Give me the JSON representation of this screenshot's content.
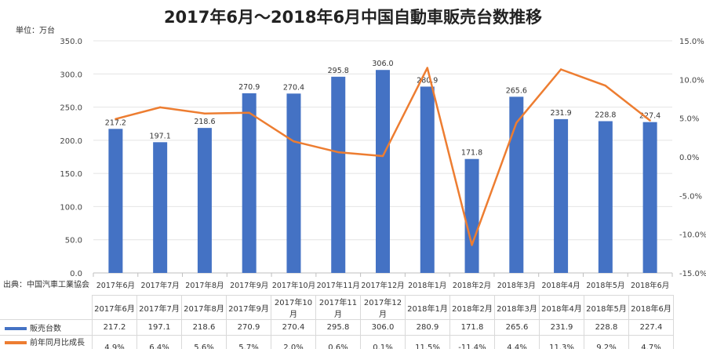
{
  "chart_data": {
    "type": "bar+line",
    "title": "2017年6月～2018年6月中国自動車販売台数推移",
    "unit_label": "単位：万台",
    "source": "出典：中国汽車工業協会",
    "categories": [
      "2017年6月",
      "2017年7月",
      "2017年8月",
      "2017年9月",
      "2017年10月",
      "2017年11月",
      "2017年12月",
      "2018年1月",
      "2018年2月",
      "2018年3月",
      "2018年4月",
      "2018年5月",
      "2018年6月"
    ],
    "series": [
      {
        "name": "販売台数",
        "type": "bar",
        "axis": "left",
        "color": "#4472c4",
        "values": [
          217.2,
          197.1,
          218.6,
          270.9,
          270.4,
          295.8,
          306.0,
          280.9,
          171.8,
          265.6,
          231.9,
          228.8,
          227.4
        ],
        "labels": [
          "217.2",
          "197.1",
          "218.6",
          "270.9",
          "270.4",
          "295.8",
          "306.0",
          "280.9",
          "171.8",
          "265.6",
          "231.9",
          "228.8",
          "227.4"
        ]
      },
      {
        "name": "前年同月比成長率",
        "type": "line",
        "axis": "right",
        "color": "#ed7d31",
        "values": [
          4.9,
          6.4,
          5.6,
          5.7,
          2.0,
          0.6,
          0.1,
          11.5,
          -11.4,
          4.4,
          11.3,
          9.2,
          4.7
        ],
        "labels": [
          "4.9%",
          "6.4%",
          "5.6%",
          "5.7%",
          "2.0%",
          "0.6%",
          "0.1%",
          "11.5%",
          "-11.4%",
          "4.4%",
          "11.3%",
          "9.2%",
          "4.7%"
        ]
      }
    ],
    "ylim_left": [
      0,
      350
    ],
    "yticks_left": [
      "0.0",
      "50.0",
      "100.0",
      "150.0",
      "200.0",
      "250.0",
      "300.0",
      "350.0"
    ],
    "ylim_right": [
      -15,
      15
    ],
    "yticks_right": [
      "-15.0%",
      "-10.0%",
      "-5.0%",
      "0.0%",
      "5.0%",
      "10.0%",
      "15.0%"
    ],
    "grid": true,
    "legend": "data-table"
  }
}
